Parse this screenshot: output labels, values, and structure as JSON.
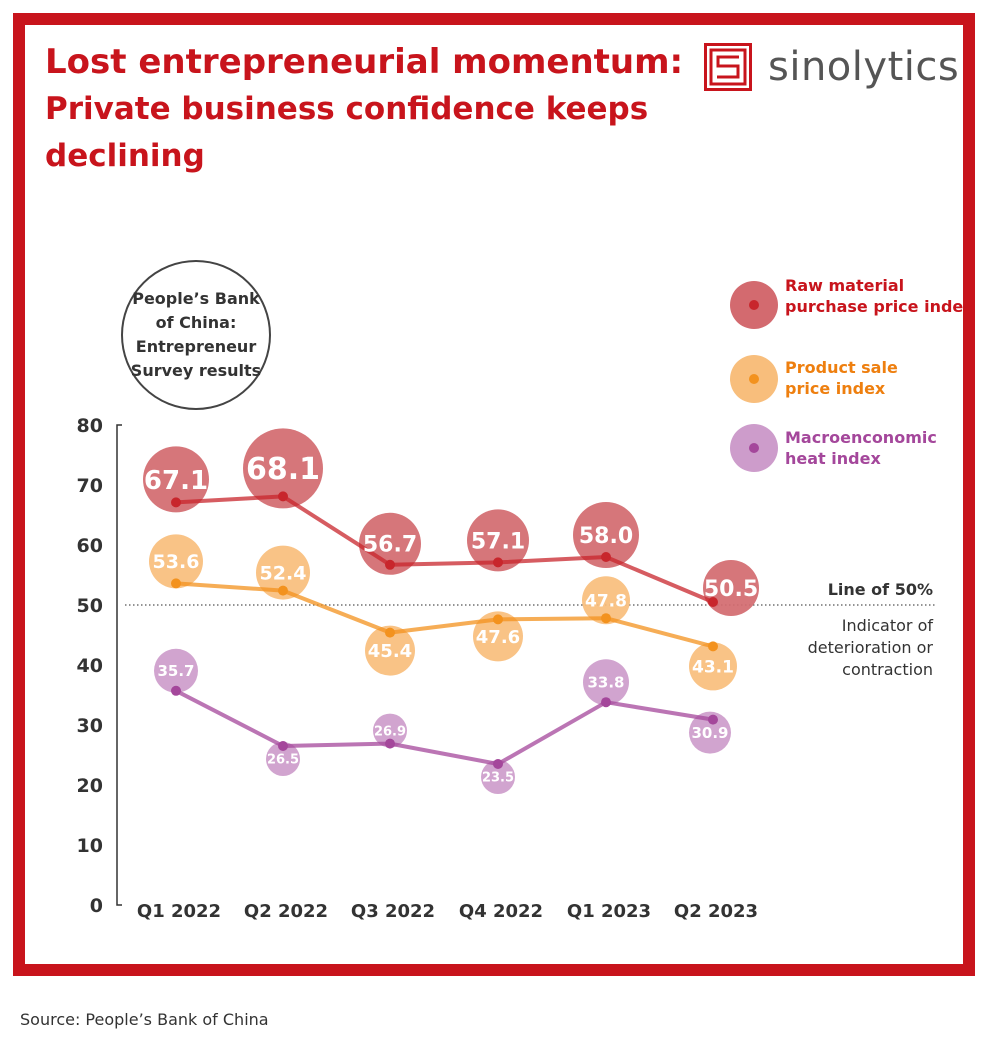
{
  "header": {
    "title": "Lost entrepreneurial momentum:",
    "subtitle": "Private business confidence keeps declining"
  },
  "brand": {
    "name": "sinolytics",
    "icon": "sinolytics-logo-icon",
    "color": "#c8141c"
  },
  "note": "People’s Bank of China: Entrepreneur Survey results",
  "source": "Source: People’s Bank of China",
  "chart_data": {
    "type": "line",
    "categories": [
      "Q1 2022",
      "Q2 2022",
      "Q3 2022",
      "Q4 2022",
      "Q1 2023",
      "Q2 2023"
    ],
    "ylim": [
      0,
      80
    ],
    "yticks": [
      0,
      10,
      20,
      30,
      40,
      50,
      60,
      70,
      80
    ],
    "grid": false,
    "legend": "top-right",
    "series": [
      {
        "name": "Raw material purchase price index",
        "values": [
          67.1,
          68.1,
          56.7,
          57.1,
          58.0,
          50.5
        ],
        "labels": [
          "67.1",
          "68.1",
          "56.7",
          "57.1",
          "58.0",
          "50.5"
        ],
        "line_color": "#c8262c",
        "bubble_color": "#d36a6f"
      },
      {
        "name": "Product sale price index",
        "values": [
          53.6,
          52.4,
          45.4,
          47.6,
          47.8,
          43.1
        ],
        "labels": [
          "53.6",
          "52.4",
          "45.4",
          "47.6",
          "47.8",
          "43.1"
        ],
        "line_color": "#f3921e",
        "bubble_color": "#f8be7c"
      },
      {
        "name": "Macroenconomic heat index",
        "values": [
          35.7,
          26.5,
          26.9,
          23.5,
          33.8,
          30.9
        ],
        "labels": [
          "35.7",
          "26.5",
          "26.9",
          "23.5",
          "33.8",
          "30.9"
        ],
        "line_color": "#a4479b",
        "bubble_color": "#cd9ccb"
      }
    ],
    "reference_line": {
      "value": 50,
      "label": "Line of 50%",
      "note": "Indicator of deterioration or contraction"
    }
  }
}
